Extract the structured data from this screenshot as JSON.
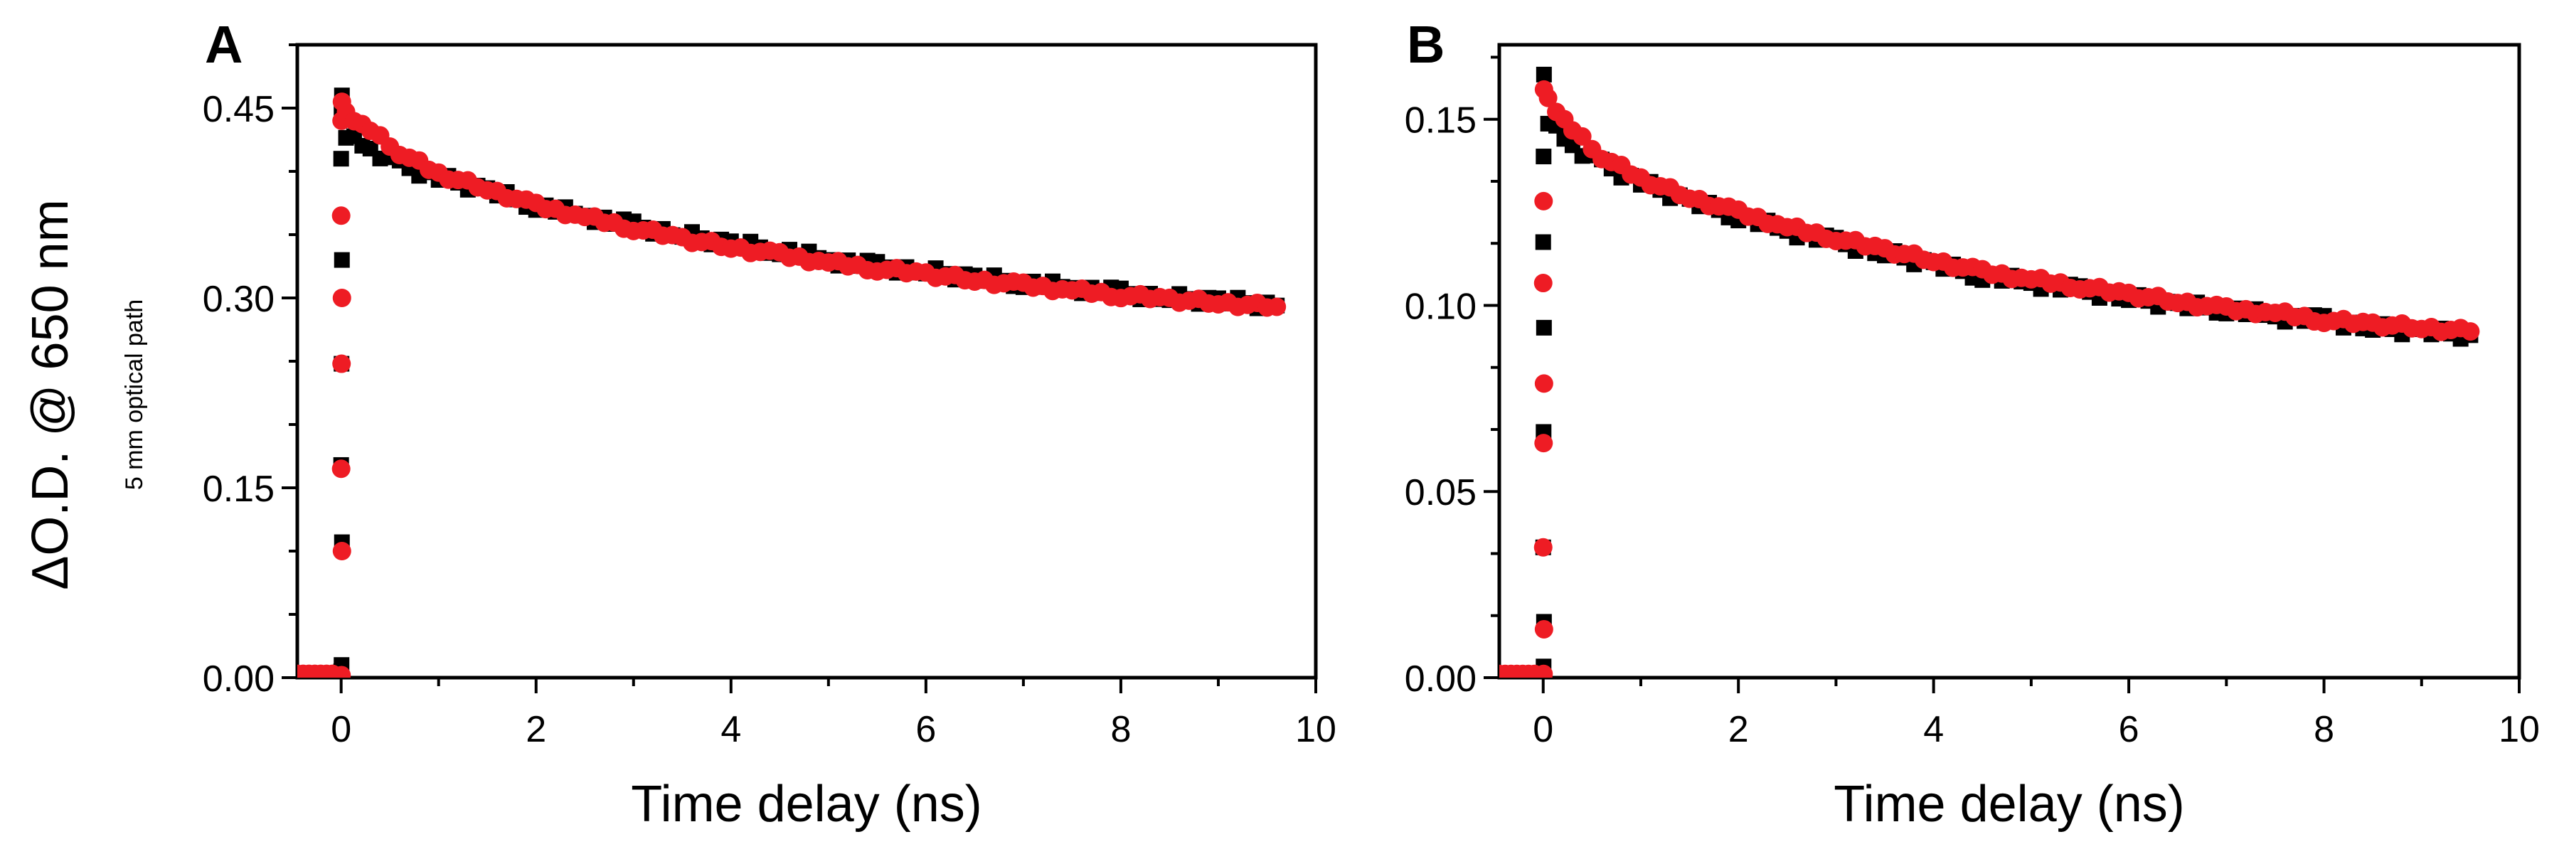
{
  "figure": {
    "ylabel": "ΔO.D. @ 650 nm",
    "ylabel_sub": "5 mm optical path"
  },
  "chart_data": [
    {
      "type": "scatter",
      "panel_label": "A",
      "xlabel": "Time delay (ns)",
      "xlim": [
        -0.45,
        10
      ],
      "ylim": [
        0,
        0.5
      ],
      "x_ticks": [
        0,
        2,
        4,
        6,
        8,
        10
      ],
      "x_tick_labels": [
        "0",
        "2",
        "4",
        "6",
        "8",
        "10"
      ],
      "y_ticks": [
        0.0,
        0.15,
        0.3,
        0.45
      ],
      "y_tick_labels": [
        "0.00",
        "0.15",
        "0.30",
        "0.45"
      ],
      "rise": {
        "t_start": -0.45,
        "t0": 0.0,
        "baseline": 0.003,
        "peak": 0.458
      },
      "series": [
        {
          "name": "black",
          "marker": "square",
          "color": "#000000",
          "rise_values": [
            0.005,
            0.01,
            0.107,
            0.168,
            0.248,
            0.33,
            0.41,
            0.45,
            0.46
          ],
          "decay": [
            [
              0.05,
              0.43
            ],
            [
              0.3,
              0.418
            ],
            [
              0.6,
              0.405
            ],
            [
              1.0,
              0.395
            ],
            [
              1.5,
              0.385
            ],
            [
              2.0,
              0.373
            ],
            [
              2.5,
              0.365
            ],
            [
              3.0,
              0.357
            ],
            [
              3.5,
              0.35
            ],
            [
              4.0,
              0.343
            ],
            [
              4.5,
              0.338
            ],
            [
              5.0,
              0.33
            ],
            [
              5.5,
              0.325
            ],
            [
              6.0,
              0.321
            ],
            [
              6.5,
              0.316
            ],
            [
              7.0,
              0.312
            ],
            [
              7.5,
              0.308
            ],
            [
              8.0,
              0.304
            ],
            [
              8.5,
              0.3
            ],
            [
              9.0,
              0.298
            ],
            [
              9.6,
              0.294
            ]
          ]
        },
        {
          "name": "red",
          "marker": "circle",
          "color": "#ee1c24",
          "rise_values": [
            0.001,
            0.002,
            0.1,
            0.165,
            0.248,
            0.3,
            0.365,
            0.44,
            0.455
          ],
          "decay": [
            [
              0.05,
              0.445
            ],
            [
              0.3,
              0.432
            ],
            [
              0.6,
              0.415
            ],
            [
              1.0,
              0.398
            ],
            [
              1.5,
              0.386
            ],
            [
              2.0,
              0.373
            ],
            [
              2.5,
              0.364
            ],
            [
              3.0,
              0.355
            ],
            [
              3.5,
              0.347
            ],
            [
              4.0,
              0.34
            ],
            [
              4.5,
              0.334
            ],
            [
              5.0,
              0.328
            ],
            [
              5.5,
              0.323
            ],
            [
              6.0,
              0.319
            ],
            [
              6.5,
              0.314
            ],
            [
              7.0,
              0.31
            ],
            [
              7.5,
              0.306
            ],
            [
              8.0,
              0.302
            ],
            [
              8.5,
              0.299
            ],
            [
              9.0,
              0.296
            ],
            [
              9.6,
              0.293
            ]
          ]
        }
      ]
    },
    {
      "type": "scatter",
      "panel_label": "B",
      "xlabel": "Time delay (ns)",
      "xlim": [
        -0.45,
        10
      ],
      "ylim": [
        0,
        0.17
      ],
      "x_ticks": [
        0,
        2,
        4,
        6,
        8,
        10
      ],
      "x_tick_labels": [
        "0",
        "2",
        "4",
        "6",
        "8",
        "10"
      ],
      "y_ticks": [
        0.0,
        0.05,
        0.1,
        0.15
      ],
      "y_tick_labels": [
        "0.00",
        "0.05",
        "0.10",
        "0.15"
      ],
      "rise": {
        "t_start": -0.45,
        "t0": 0.0,
        "baseline": 0.001,
        "peak": 0.16
      },
      "series": [
        {
          "name": "black",
          "marker": "square",
          "color": "#000000",
          "rise_values": [
            0.001,
            0.003,
            0.015,
            0.035,
            0.066,
            0.094,
            0.117,
            0.14,
            0.162
          ],
          "decay": [
            [
              0.05,
              0.15
            ],
            [
              0.3,
              0.143
            ],
            [
              0.6,
              0.138
            ],
            [
              1.0,
              0.133
            ],
            [
              1.5,
              0.128
            ],
            [
              2.0,
              0.124
            ],
            [
              2.5,
              0.12
            ],
            [
              3.0,
              0.117
            ],
            [
              3.5,
              0.114
            ],
            [
              4.0,
              0.111
            ],
            [
              4.5,
              0.108
            ],
            [
              5.0,
              0.106
            ],
            [
              5.5,
              0.104
            ],
            [
              6.0,
              0.102
            ],
            [
              6.5,
              0.1
            ],
            [
              7.0,
              0.099
            ],
            [
              7.5,
              0.097
            ],
            [
              8.0,
              0.096
            ],
            [
              8.5,
              0.094
            ],
            [
              9.0,
              0.093
            ],
            [
              9.5,
              0.092
            ]
          ]
        },
        {
          "name": "red",
          "marker": "circle",
          "color": "#ee1c24",
          "rise_values": [
            0.0,
            0.001,
            0.013,
            0.035,
            0.063,
            0.079,
            0.106,
            0.128,
            0.158
          ],
          "decay": [
            [
              0.05,
              0.155
            ],
            [
              0.3,
              0.147
            ],
            [
              0.6,
              0.14
            ],
            [
              1.0,
              0.134
            ],
            [
              1.5,
              0.129
            ],
            [
              2.0,
              0.125
            ],
            [
              2.5,
              0.121
            ],
            [
              3.0,
              0.118
            ],
            [
              3.5,
              0.115
            ],
            [
              4.0,
              0.112
            ],
            [
              4.5,
              0.109
            ],
            [
              5.0,
              0.107
            ],
            [
              5.5,
              0.105
            ],
            [
              6.0,
              0.103
            ],
            [
              6.5,
              0.101
            ],
            [
              7.0,
              0.099
            ],
            [
              7.5,
              0.098
            ],
            [
              8.0,
              0.096
            ],
            [
              8.5,
              0.095
            ],
            [
              9.0,
              0.094
            ],
            [
              9.5,
              0.093
            ]
          ]
        }
      ]
    }
  ]
}
